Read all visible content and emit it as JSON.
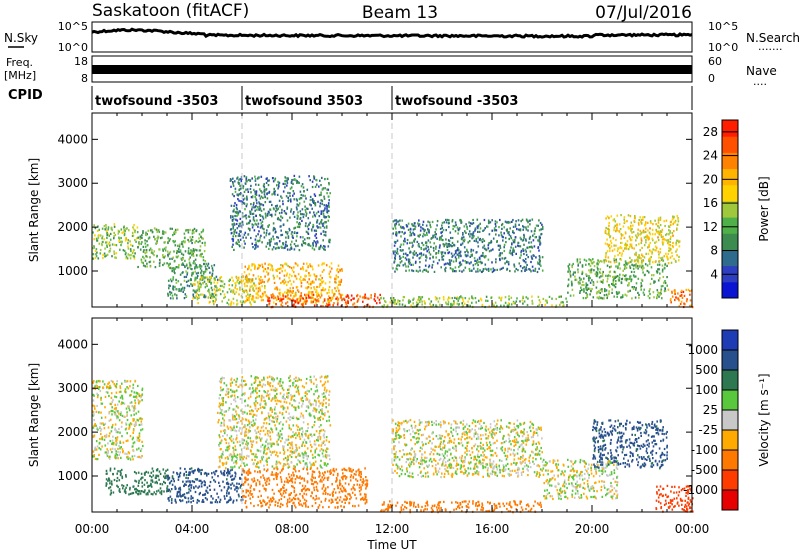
{
  "header": {
    "station": "Saskatoon (fitACF)",
    "beam": "Beam 13",
    "date": "07/Jul/2016"
  },
  "colors": {
    "axis": "#000000",
    "dashed_line": "#c8c8c8"
  },
  "top_panels": {
    "nsky": {
      "left_label": "N.Sky",
      "right_label": "N.Search",
      "right_dots": ".......",
      "left_ticks": [
        "10^5",
        "10^0"
      ],
      "right_ticks": [
        "10^5",
        "10^0"
      ]
    },
    "freq": {
      "left_label_1": "Freq.",
      "left_label_2": "[MHz]",
      "right_label": "Nave",
      "right_dots": "....",
      "left_ticks": [
        "18",
        "8"
      ],
      "right_ticks": [
        "60",
        "0"
      ]
    },
    "cpid": {
      "label": "CPID",
      "segments": [
        {
          "name": "twofsound -3503",
          "start_hour": 0,
          "end_hour": 6
        },
        {
          "name": "twofsound 3503",
          "start_hour": 6,
          "end_hour": 12
        },
        {
          "name": "twofsound -3503",
          "start_hour": 12,
          "end_hour": 24
        }
      ]
    }
  },
  "chart_data": [
    {
      "type": "heatmap",
      "title": "",
      "xlabel": "Time UT",
      "ylabel": "Slant Range [km]",
      "xlim_hours": [
        0,
        24
      ],
      "ylim_km": [
        180,
        4600
      ],
      "x_ticks": [
        "00:00",
        "04:00",
        "08:00",
        "12:00",
        "16:00",
        "20:00",
        "00:00"
      ],
      "y_ticks": [
        1000,
        2000,
        3000,
        4000
      ],
      "colorbar": {
        "label": "Power [dB]",
        "range": [
          0,
          30
        ],
        "ticks": [
          4,
          8,
          12,
          16,
          20,
          24,
          28
        ],
        "colors": [
          "#0a14d2",
          "#2d3fc0",
          "#2e6b8c",
          "#3c8c50",
          "#4fb04a",
          "#a0c83c",
          "#ffd200",
          "#ffb400",
          "#ff8200",
          "#ff5000",
          "#ff1e00"
        ]
      },
      "scatter_regions": [
        {
          "t": [
            0.0,
            1.8
          ],
          "r": [
            1300,
            2100
          ],
          "value": 14
        },
        {
          "t": [
            1.8,
            4.5
          ],
          "r": [
            1100,
            2000
          ],
          "value": 12
        },
        {
          "t": [
            3.0,
            5.0
          ],
          "r": [
            400,
            1200
          ],
          "value": 10
        },
        {
          "t": [
            4.0,
            6.5
          ],
          "r": [
            250,
            900
          ],
          "value": 16
        },
        {
          "t": [
            6.0,
            10.0
          ],
          "r": [
            300,
            1200
          ],
          "value": 20
        },
        {
          "t": [
            7.0,
            11.5
          ],
          "r": [
            200,
            500
          ],
          "value": 26
        },
        {
          "t": [
            5.5,
            9.5
          ],
          "r": [
            1500,
            3200
          ],
          "value": 8
        },
        {
          "t": [
            11.5,
            19.0
          ],
          "r": [
            200,
            450
          ],
          "value": 14
        },
        {
          "t": [
            12.0,
            18.0
          ],
          "r": [
            1000,
            2200
          ],
          "value": 8
        },
        {
          "t": [
            19.0,
            23.0
          ],
          "r": [
            400,
            1300
          ],
          "value": 12
        },
        {
          "t": [
            20.5,
            23.5
          ],
          "r": [
            1200,
            2300
          ],
          "value": 18
        },
        {
          "t": [
            23.0,
            24.0
          ],
          "r": [
            200,
            600
          ],
          "value": 24
        }
      ]
    },
    {
      "type": "heatmap",
      "title": "",
      "xlabel": "Time UT",
      "ylabel": "Slant Range [km]",
      "xlim_hours": [
        0,
        24
      ],
      "ylim_km": [
        180,
        4600
      ],
      "x_ticks": [
        "00:00",
        "04:00",
        "08:00",
        "12:00",
        "16:00",
        "20:00",
        "00:00"
      ],
      "y_ticks": [
        1000,
        2000,
        3000,
        4000
      ],
      "colorbar": {
        "label": "Velocity [m s⁻¹]",
        "tick_labels": [
          "1000",
          "500",
          "100",
          "25",
          "-25",
          "-100",
          "-500",
          "-1000"
        ],
        "colors": [
          "#1e3cb4",
          "#28508c",
          "#2d7850",
          "#5ac83c",
          "#c8c8c8",
          "#ffaa00",
          "#ff7800",
          "#ff3c00",
          "#e60000"
        ]
      },
      "scatter_regions": [
        {
          "t": [
            0.0,
            2.0
          ],
          "r": [
            1400,
            3200
          ],
          "value": 0
        },
        {
          "t": [
            0.5,
            3.0
          ],
          "r": [
            600,
            1200
          ],
          "value": 150
        },
        {
          "t": [
            3.0,
            6.0
          ],
          "r": [
            400,
            1200
          ],
          "value": 300
        },
        {
          "t": [
            5.0,
            9.5
          ],
          "r": [
            1200,
            3300
          ],
          "value": 0
        },
        {
          "t": [
            6.0,
            11.0
          ],
          "r": [
            300,
            1200
          ],
          "value": -150
        },
        {
          "t": [
            11.5,
            18.0
          ],
          "r": [
            200,
            450
          ],
          "value": -150
        },
        {
          "t": [
            12.0,
            18.0
          ],
          "r": [
            1000,
            2300
          ],
          "value": 0
        },
        {
          "t": [
            18.0,
            21.0
          ],
          "r": [
            500,
            1400
          ],
          "value": 0
        },
        {
          "t": [
            20.0,
            23.0
          ],
          "r": [
            1200,
            2300
          ],
          "value": 300
        },
        {
          "t": [
            22.5,
            24.0
          ],
          "r": [
            200,
            800
          ],
          "value": -400
        }
      ]
    }
  ]
}
